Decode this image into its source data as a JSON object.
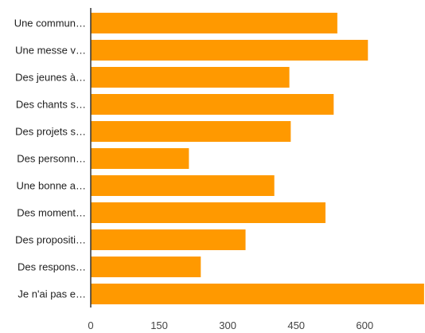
{
  "chart_data": {
    "type": "bar",
    "orientation": "horizontal",
    "categories": [
      "Une commun…",
      "Une messe v…",
      "Des jeunes à…",
      "Des chants s…",
      "Des projets s…",
      "Des personn…",
      "Une bonne a…",
      "Des moment…",
      "Des propositi…",
      "Des respons…",
      "Je n'ai pas e…"
    ],
    "values": [
      540,
      607,
      435,
      532,
      438,
      215,
      402,
      514,
      339,
      241,
      730
    ],
    "xticks": [
      0,
      150,
      300,
      450,
      600
    ],
    "xlim": [
      0,
      730
    ],
    "title": "",
    "xlabel": "",
    "ylabel": "",
    "grid": false,
    "bar_color": "#ff9900"
  }
}
